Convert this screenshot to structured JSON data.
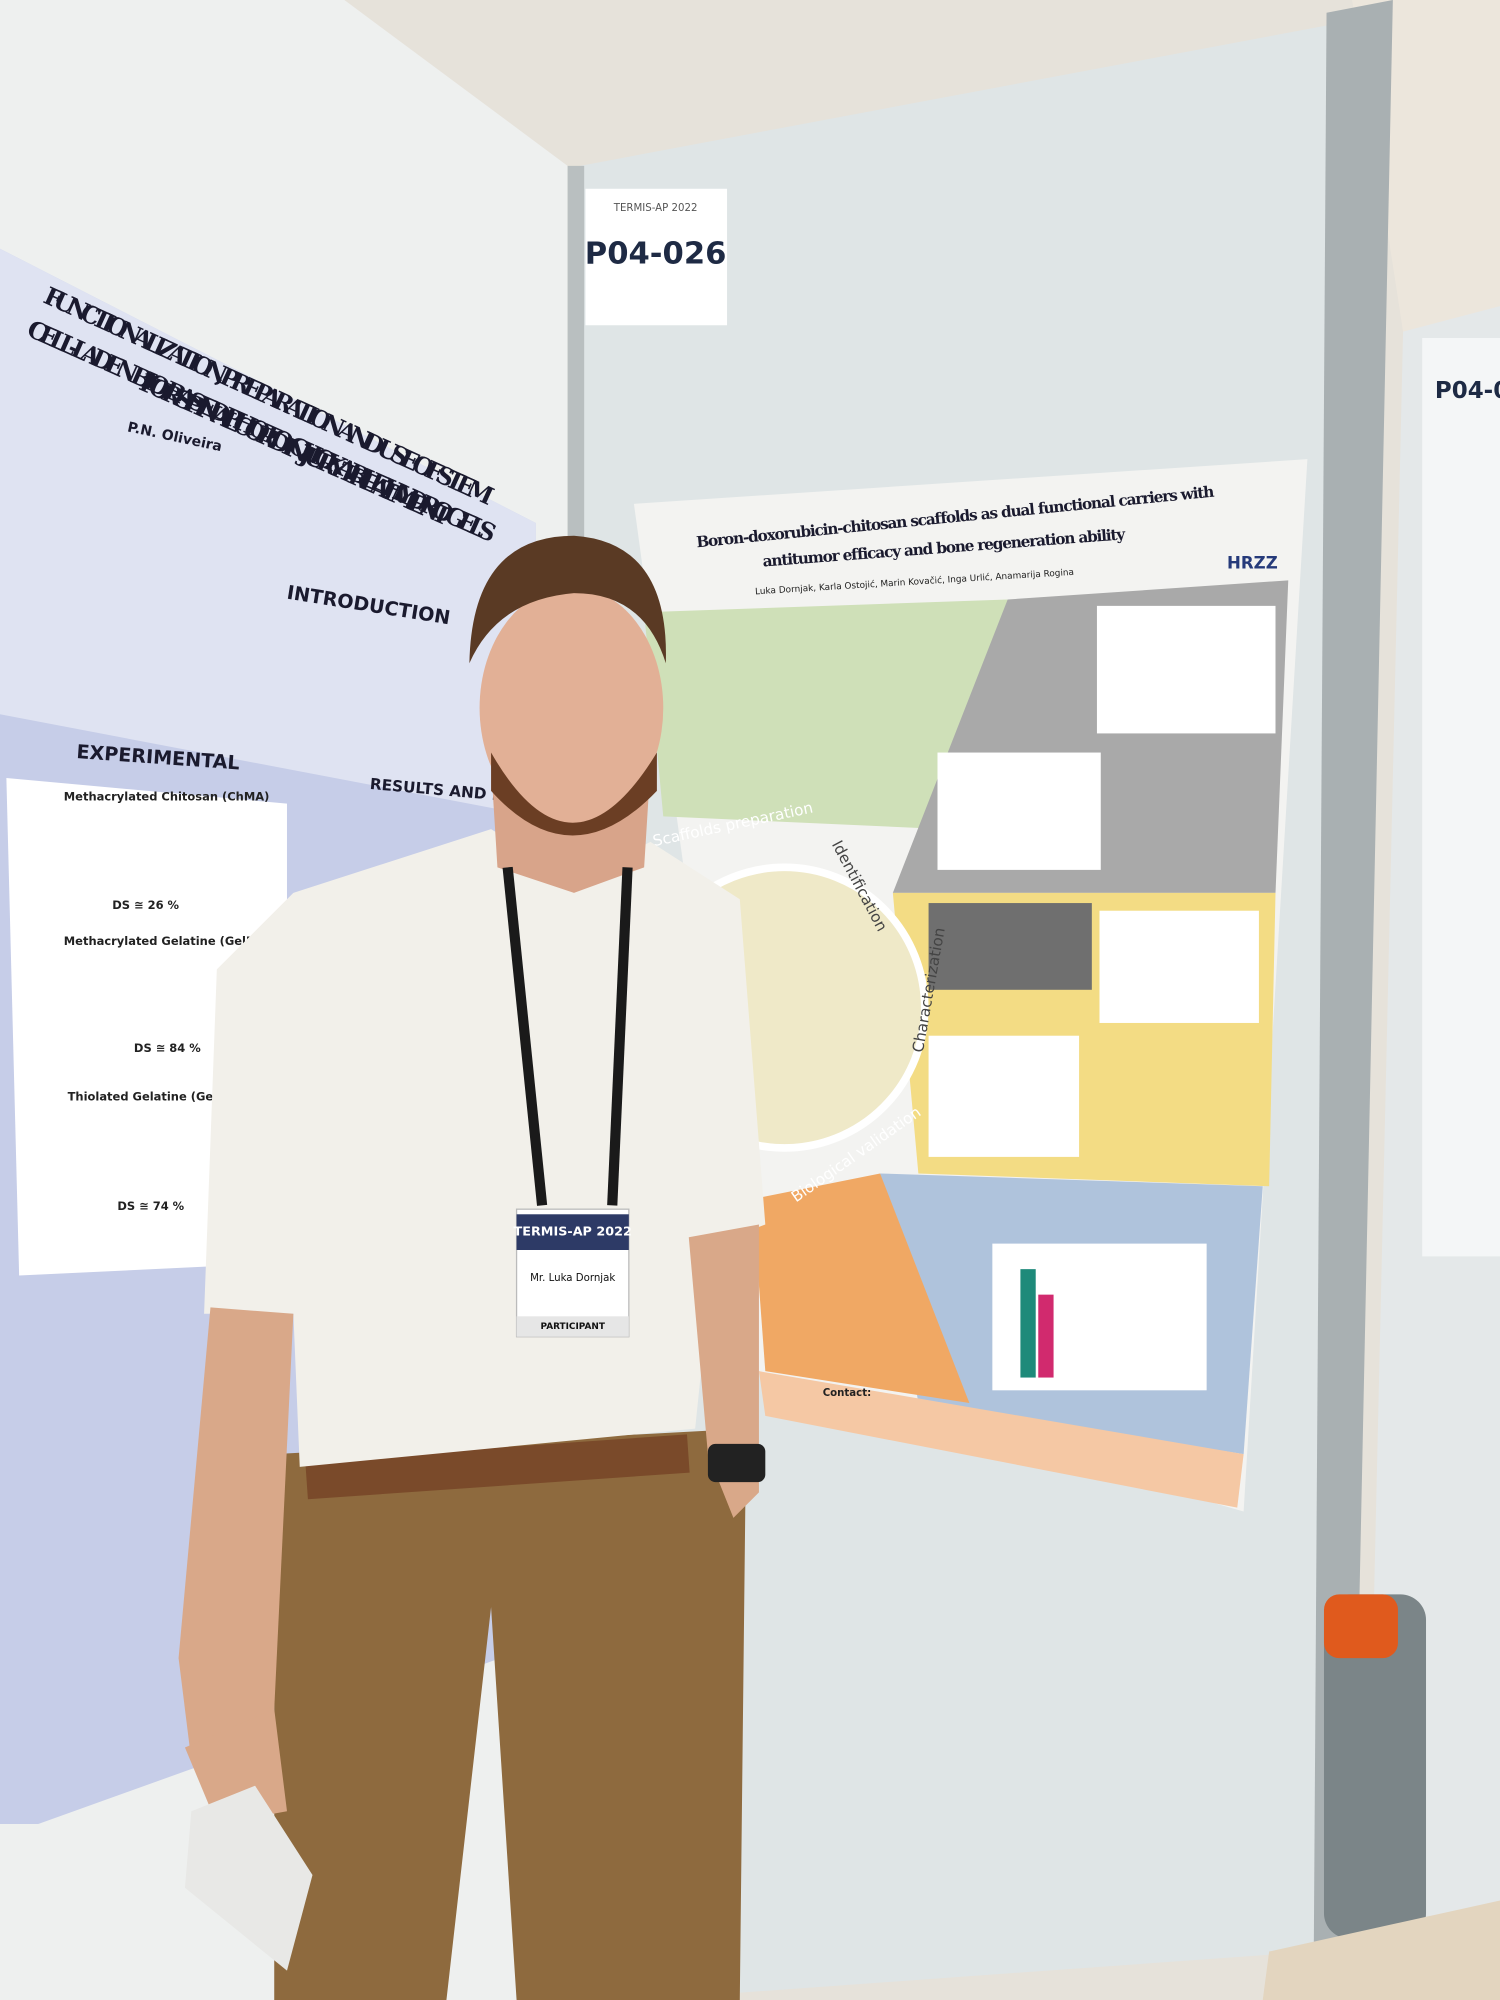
{
  "booth_label": {
    "conference": "TERMIS-AP 2022",
    "code": "P04-026"
  },
  "neighbor_label": {
    "code": "P04-0"
  },
  "left_poster": {
    "title": [
      "FUNCTIONALIZATION, PREPARATION AND USE OF STEM",
      "CELL-LADEN BIO-BASED PHOTO-CLICKABLE HYDROGELS",
      "FOR SPINAL CORD INJURY TREATMENT"
    ],
    "author": "P.N. Oliveira",
    "sections": [
      "INTRODUCTION",
      "EXPERIMENTAL",
      "RESULTS AND DISCU"
    ],
    "materials": [
      "Methacrylated Chitosan (ChMA)",
      "Methacrylated Gelatine (GelMA)",
      "Thiolated Gelatine (GelSH)"
    ],
    "degrees": [
      "DS ≅ 26 %",
      "DS ≅ 84 %",
      "DS ≅ 74 %"
    ]
  },
  "right_poster": {
    "title": [
      "Boron-doxorubicin-chitosan scaffolds as dual functional carriers with",
      "antitumor efficacy and bone regeneration ability"
    ],
    "authors": "Luka Dornjak, Karla Ostojić, Marin Kovačić, Inga Urlić, Anamarija Rogina",
    "funder": "HRZZ",
    "sections": [
      "Scaffolds preparation",
      "Identification",
      "Characterization",
      "Biological validation"
    ],
    "contact": "Contact:"
  },
  "badge": {
    "event": "TERMIS-AP 2022",
    "name": "Mr. Luka Dornjak",
    "role": "PARTICIPANT"
  }
}
